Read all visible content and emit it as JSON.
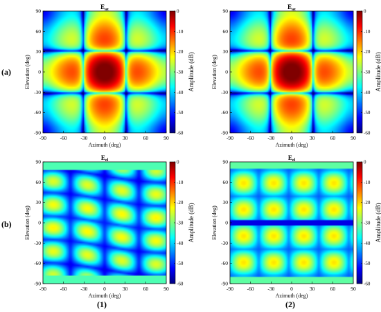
{
  "row_labels": [
    "(a)",
    "(b)"
  ],
  "column_labels": [
    "(1)",
    "(2)"
  ],
  "chart_data": [
    {
      "type": "heatmap",
      "panel": "a1",
      "pattern": "az",
      "title_main": "E",
      "title_sub": "az",
      "xlabel": "Azimuth (deg)",
      "ylabel": "Elevation (deg)",
      "xlim": [
        -90,
        90
      ],
      "ylim": [
        -90,
        90
      ],
      "xticks": [
        "-90",
        "-60",
        "-30",
        "0",
        "30",
        "60",
        "90"
      ],
      "yticks": [
        "90",
        "60",
        "30",
        "0",
        "-30",
        "-60",
        "-90"
      ],
      "colorbar": {
        "label": "Amplitude (dB)",
        "range": [
          -60,
          0
        ],
        "ticks": [
          "0",
          "-10",
          "-20",
          "-30",
          "-40",
          "-50",
          "-60"
        ],
        "colormap": "jet"
      },
      "peak_db": 0,
      "peak_location": [
        0,
        0
      ]
    },
    {
      "type": "heatmap",
      "panel": "a2",
      "pattern": "az",
      "title_main": "E",
      "title_sub": "az",
      "xlabel": "Azimuth (deg)",
      "ylabel": "Elevation (deg)",
      "xlim": [
        -90,
        90
      ],
      "ylim": [
        -90,
        90
      ],
      "xticks": [
        "-90",
        "-60",
        "-30",
        "0",
        "30",
        "60",
        "90"
      ],
      "yticks": [
        "90",
        "60",
        "30",
        "0",
        "-30",
        "-60",
        "-90"
      ],
      "colorbar": {
        "label": "Amplitude (dB)",
        "range": [
          -60,
          0
        ],
        "ticks": [
          "0",
          "-10",
          "-20",
          "-30",
          "-40",
          "-50",
          "-60"
        ],
        "colormap": "jet"
      },
      "peak_db": 0,
      "peak_location": [
        0,
        0
      ]
    },
    {
      "type": "heatmap",
      "panel": "b1",
      "pattern": "el1",
      "title_main": "E",
      "title_sub": "el",
      "xlabel": "Azimuth (deg)",
      "ylabel": "Elevation (deg)",
      "xlim": [
        -90,
        90
      ],
      "ylim": [
        -90,
        90
      ],
      "xticks": [
        "-90",
        "-60",
        "-30",
        "0",
        "30",
        "60",
        "90"
      ],
      "yticks": [
        "90",
        "60",
        "30",
        "0",
        "-30",
        "-60",
        "-90"
      ],
      "colorbar": {
        "label": "Amplitude (dB)",
        "range": [
          -60,
          0
        ],
        "ticks": [
          "0",
          "-10",
          "-20",
          "-30",
          "-40",
          "-50",
          "-60"
        ],
        "colormap": "jet"
      },
      "peak_db": -30
    },
    {
      "type": "heatmap",
      "panel": "b2",
      "pattern": "el2",
      "title_main": "E",
      "title_sub": "el",
      "xlabel": "Azimuth (deg)",
      "ylabel": "Elevation (deg)",
      "xlim": [
        -90,
        90
      ],
      "ylim": [
        -90,
        90
      ],
      "xticks": [
        "-90",
        "-60",
        "-30",
        "0",
        "30",
        "60",
        "90"
      ],
      "yticks": [
        "90",
        "60",
        "30",
        "0",
        "-30",
        "-60",
        "-90"
      ],
      "colorbar": {
        "label": "Amplitude (dB)",
        "range": [
          -60,
          0
        ],
        "ticks": [
          "0",
          "-10",
          "-20",
          "-30",
          "-40",
          "-50",
          "-60"
        ],
        "colormap": "jet"
      },
      "peak_db": -30
    }
  ]
}
